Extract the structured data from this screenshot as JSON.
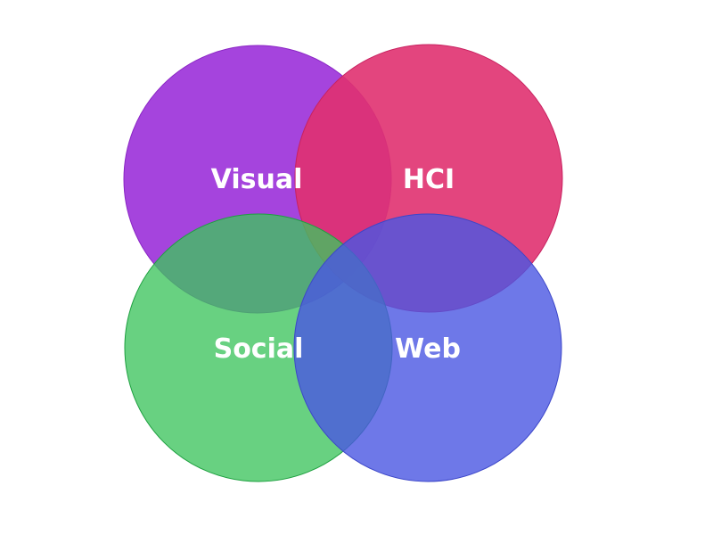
{
  "diagram": {
    "type": "venn",
    "sets": [
      {
        "key": "visual",
        "label": "Visual",
        "fill": "#9b30d9",
        "stroke": "#8a25c4"
      },
      {
        "key": "hci",
        "label": "HCI",
        "fill": "#e03170",
        "stroke": "#c82260"
      },
      {
        "key": "social",
        "label": "Social",
        "fill": "#3ec45e",
        "stroke": "#1ea040"
      },
      {
        "key": "web",
        "label": "Web",
        "fill": "#4a56e2",
        "stroke": "#3c46c8"
      }
    ]
  }
}
